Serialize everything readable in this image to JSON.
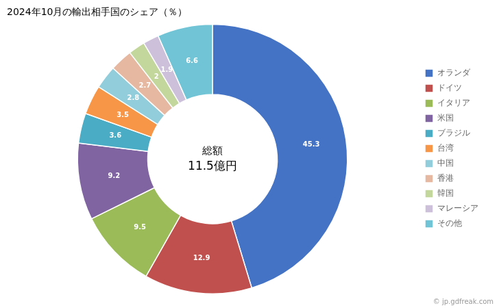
{
  "chart_data": {
    "type": "doughnut",
    "title": "2024年10月の輸出相手国のシェア（％）",
    "categories": [
      "オランダ",
      "ドイツ",
      "イタリア",
      "米国",
      "ブラジル",
      "台湾",
      "中国",
      "香港",
      "韓国",
      "マレーシア",
      "その他"
    ],
    "values": [
      45.3,
      12.9,
      9.5,
      9.2,
      3.6,
      3.5,
      2.8,
      2.7,
      2.0,
      1.9,
      6.6
    ],
    "colors": [
      "#4472C4",
      "#C0504D",
      "#9BBB59",
      "#8064A2",
      "#4BACC6",
      "#F79646",
      "#92CDDC",
      "#E6B8A2",
      "#C3D69B",
      "#CCC0DA",
      "#71C4D5"
    ],
    "data_labels": true,
    "legend": "right",
    "center_text": [
      "総額",
      "11.5億円"
    ],
    "annotations": [
      "© jp.gdfreak.com"
    ]
  }
}
